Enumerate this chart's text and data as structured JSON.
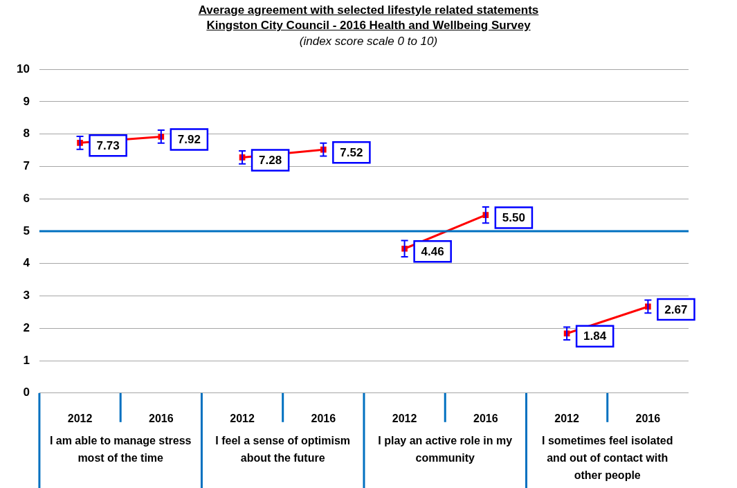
{
  "chart_data": {
    "type": "line",
    "title": "Average agreement with selected lifestyle related statements\nKingston City Council - 2016 Health and Wellbeing Survey",
    "subtitle": "(index score scale 0 to 10)",
    "categories": [
      "2012",
      "2016",
      "2012",
      "2016",
      "2012",
      "2016",
      "2012",
      "2016"
    ],
    "series": [
      {
        "color": "#ff0000",
        "values": [
          7.73,
          7.92,
          null,
          null,
          null,
          null,
          null,
          null
        ],
        "errors": [
          0.2,
          0.2,
          null,
          null,
          null,
          null,
          null,
          null
        ],
        "value_labels": [
          "7.73",
          "7.92",
          null,
          null,
          null,
          null,
          null,
          null
        ]
      },
      {
        "color": "#ff0000",
        "values": [
          null,
          null,
          7.28,
          7.52,
          null,
          null,
          null,
          null
        ],
        "errors": [
          null,
          null,
          0.2,
          0.2,
          null,
          null,
          null,
          null
        ],
        "value_labels": [
          null,
          null,
          "7.28",
          "7.52",
          null,
          null,
          null,
          null
        ]
      },
      {
        "color": "#ff0000",
        "values": [
          null,
          null,
          null,
          null,
          4.46,
          5.5,
          null,
          null
        ],
        "errors": [
          null,
          null,
          null,
          null,
          0.25,
          0.25,
          null,
          null
        ],
        "value_labels": [
          null,
          null,
          null,
          null,
          "4.46",
          "5.50",
          null,
          null
        ]
      },
      {
        "color": "#ff0000",
        "values": [
          null,
          null,
          null,
          null,
          null,
          null,
          1.84,
          2.67
        ],
        "errors": [
          null,
          null,
          null,
          null,
          null,
          null,
          0.2,
          0.2
        ],
        "value_labels": [
          null,
          null,
          null,
          null,
          null,
          null,
          "1.84",
          "2.67"
        ]
      }
    ],
    "annotations": [
      "I am able to manage stress most of the time",
      "I feel a sense of optimism about the future",
      "I play an active role in my community",
      "I sometimes feel isolated and out of contact with other people"
    ],
    "ylim": [
      0,
      10
    ],
    "yticks": [
      0,
      1,
      2,
      3,
      4,
      5,
      6,
      7,
      8,
      9,
      10
    ],
    "grid": "y",
    "legend": false,
    "marker": "square",
    "line_style": "solid",
    "ref_lines": [
      {
        "axis": "y",
        "value": 5,
        "color": "#0070c0"
      }
    ]
  }
}
